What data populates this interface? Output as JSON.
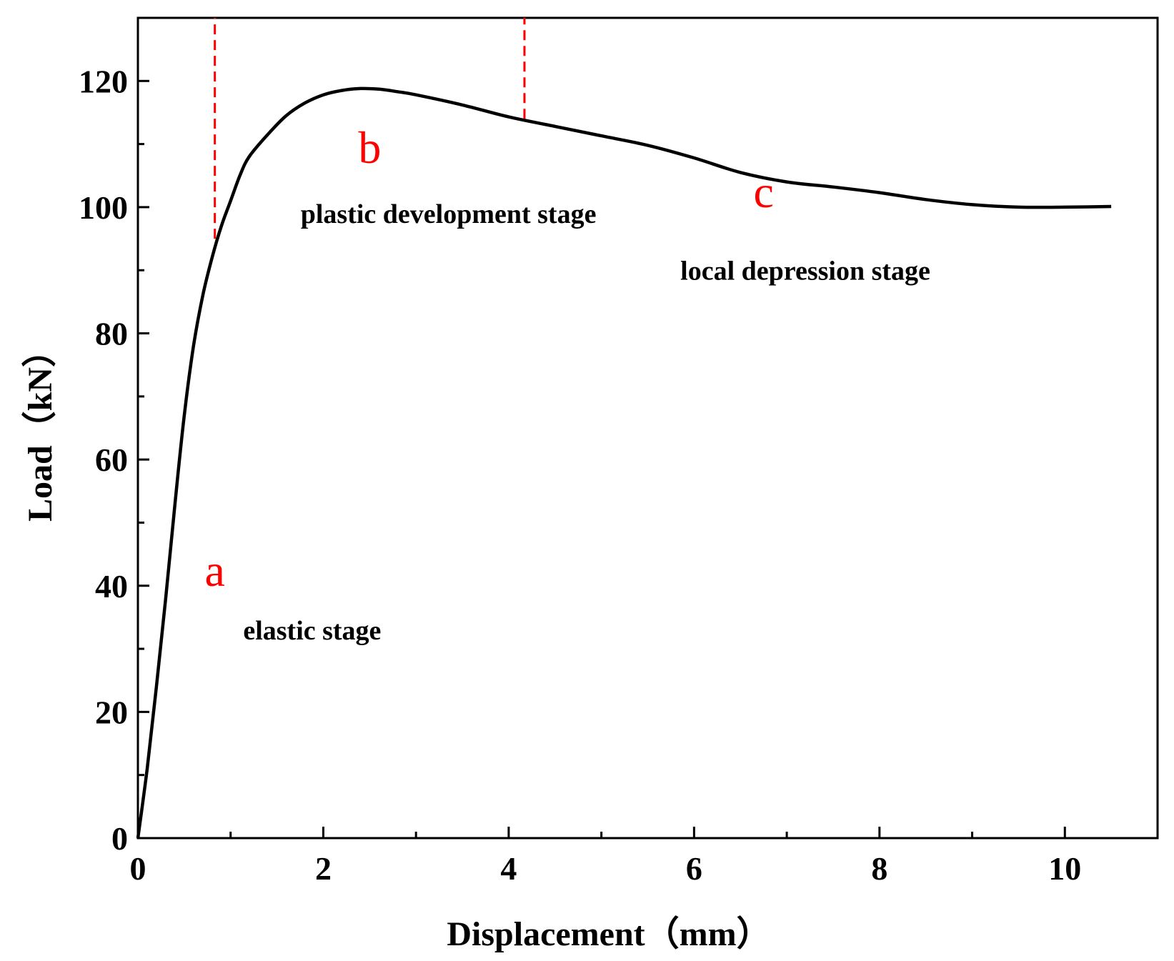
{
  "chart_data": {
    "type": "line",
    "xlabel": "Displacement（mm）",
    "ylabel": "Load（kN）",
    "xlim": [
      0,
      11
    ],
    "ylim": [
      0,
      130
    ],
    "x_ticks": [
      0,
      2,
      4,
      6,
      8,
      10
    ],
    "y_ticks": [
      0,
      20,
      40,
      60,
      80,
      100,
      120
    ],
    "grid": false,
    "legend": "none",
    "line_color": "#000000",
    "divider_color": "#ff0000",
    "series": [
      {
        "x": [
          0,
          0.1,
          0.2,
          0.3,
          0.4,
          0.5,
          0.6,
          0.7,
          0.8,
          0.9,
          1.0,
          1.1,
          1.2,
          1.4,
          1.6,
          1.8,
          2.0,
          2.2,
          2.4,
          2.6,
          2.8,
          3.0,
          3.5,
          4.0,
          4.5,
          5.0,
          5.5,
          6.0,
          6.5,
          7.0,
          7.5,
          8.0,
          8.5,
          9.0,
          9.5,
          10.0,
          10.5
        ],
        "y": [
          0,
          11,
          24,
          38,
          53,
          67,
          78,
          86,
          92,
          97,
          101,
          105,
          108,
          111.5,
          114.5,
          116.5,
          117.8,
          118.5,
          118.8,
          118.7,
          118.3,
          117.8,
          116.2,
          114.3,
          112.8,
          111.3,
          109.8,
          107.8,
          105.5,
          104,
          103.2,
          102.3,
          101.2,
          100.4,
          100,
          100,
          100.1
        ]
      }
    ],
    "dividers": [
      {
        "x": 0.83,
        "y_from": 95,
        "y_to": 130
      },
      {
        "x": 4.17,
        "y_from": 114,
        "y_to": 130
      }
    ],
    "point_labels": [
      {
        "text": "a",
        "x": 0.83,
        "y": 40
      },
      {
        "text": "b",
        "x": 2.5,
        "y": 107
      },
      {
        "text": "c",
        "x": 6.75,
        "y": 100
      }
    ],
    "stage_labels": [
      {
        "text": "elastic stage",
        "x": 1.88,
        "y": 31.5
      },
      {
        "text": "plastic development stage",
        "x": 3.35,
        "y": 97.5
      },
      {
        "text": "local depression stage",
        "x": 7.2,
        "y": 88.5
      }
    ]
  }
}
